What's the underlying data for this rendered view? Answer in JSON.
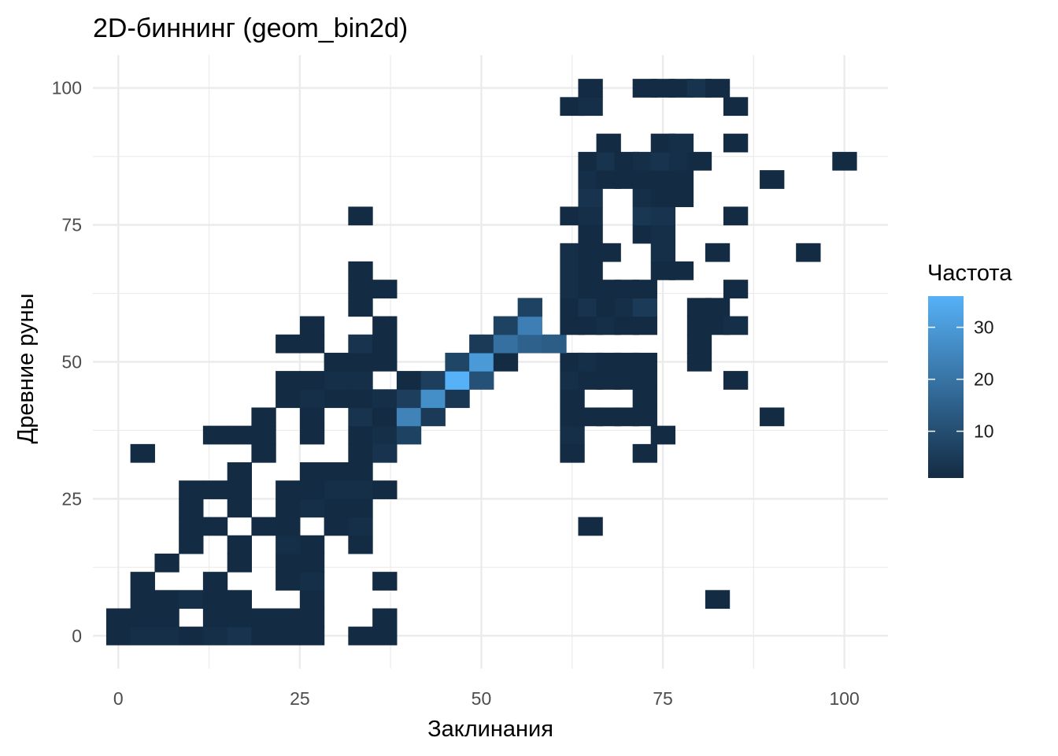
{
  "chart_data": {
    "type": "heatmap",
    "title": "2D-биннинг (geom_bin2d)",
    "xlabel": "Заклинания",
    "ylabel": "Древние руны",
    "xlim": [
      -3.5,
      106
    ],
    "ylim": [
      -6,
      106
    ],
    "x_ticks": [
      0,
      25,
      50,
      75,
      100
    ],
    "y_ticks": [
      0,
      25,
      50,
      75,
      100
    ],
    "x_tick_labels": [
      "0",
      "25",
      "50",
      "75",
      "100"
    ],
    "y_tick_labels": [
      "0",
      "25",
      "50",
      "75",
      "100"
    ],
    "grid": true,
    "binwidth_x": 3.33,
    "binwidth_y": 3.33,
    "legend": {
      "title": "Частота",
      "position": "right",
      "range": [
        1,
        36
      ],
      "ticks": [
        10,
        20,
        30
      ],
      "tick_labels": [
        "10",
        "20",
        "30"
      ],
      "low_color": "#132B43",
      "high_color": "#56B1F7"
    },
    "cells": [
      [
        0,
        0,
        1
      ],
      [
        3.33,
        0,
        2
      ],
      [
        6.67,
        0,
        2
      ],
      [
        10,
        0,
        1
      ],
      [
        13.33,
        0,
        2
      ],
      [
        16.67,
        0,
        3
      ],
      [
        20,
        0,
        1
      ],
      [
        23.33,
        0,
        1
      ],
      [
        26.67,
        0,
        1
      ],
      [
        33.33,
        0,
        1
      ],
      [
        36.67,
        0,
        1
      ],
      [
        0,
        3.33,
        1
      ],
      [
        3.33,
        3.33,
        1
      ],
      [
        6.67,
        3.33,
        1
      ],
      [
        13.33,
        3.33,
        1
      ],
      [
        16.67,
        3.33,
        1
      ],
      [
        20,
        3.33,
        1
      ],
      [
        23.33,
        3.33,
        1
      ],
      [
        26.67,
        3.33,
        1
      ],
      [
        36.67,
        3.33,
        1
      ],
      [
        3.33,
        6.67,
        1
      ],
      [
        6.67,
        6.67,
        1
      ],
      [
        10,
        6.67,
        2
      ],
      [
        13.33,
        6.67,
        1
      ],
      [
        16.67,
        6.67,
        1
      ],
      [
        26.67,
        6.67,
        1
      ],
      [
        82.5,
        6.67,
        1
      ],
      [
        3.33,
        10,
        1
      ],
      [
        13.33,
        10,
        1
      ],
      [
        23.33,
        10,
        1
      ],
      [
        26.67,
        10,
        2
      ],
      [
        36.67,
        10,
        1
      ],
      [
        6.67,
        13.33,
        1
      ],
      [
        16.67,
        13.33,
        1
      ],
      [
        23.33,
        13.33,
        1
      ],
      [
        26.67,
        13.33,
        1
      ],
      [
        10,
        16.67,
        1
      ],
      [
        16.67,
        16.67,
        1
      ],
      [
        23.33,
        16.67,
        2
      ],
      [
        26.67,
        16.67,
        1
      ],
      [
        33.33,
        16.67,
        1
      ],
      [
        10,
        20,
        1
      ],
      [
        13.33,
        20,
        1
      ],
      [
        20,
        20,
        1
      ],
      [
        23.33,
        20,
        1
      ],
      [
        30,
        20,
        1
      ],
      [
        33.33,
        20,
        2
      ],
      [
        65,
        20,
        1
      ],
      [
        10,
        23.33,
        1
      ],
      [
        16.67,
        23.33,
        1
      ],
      [
        23.33,
        23.33,
        1
      ],
      [
        26.67,
        23.33,
        2
      ],
      [
        30,
        23.33,
        1
      ],
      [
        33.33,
        23.33,
        1
      ],
      [
        10,
        26.67,
        1
      ],
      [
        13.33,
        26.67,
        1
      ],
      [
        16.67,
        26.67,
        1
      ],
      [
        23.33,
        26.67,
        1
      ],
      [
        26.67,
        26.67,
        1
      ],
      [
        30,
        26.67,
        2
      ],
      [
        33.33,
        26.67,
        2
      ],
      [
        36.67,
        26.67,
        1
      ],
      [
        16.67,
        30,
        1
      ],
      [
        26.67,
        30,
        1
      ],
      [
        30,
        30,
        1
      ],
      [
        33.33,
        30,
        1
      ],
      [
        3.33,
        33.33,
        1
      ],
      [
        20,
        33.33,
        1
      ],
      [
        33.33,
        33.33,
        1
      ],
      [
        36.67,
        33.33,
        3
      ],
      [
        62.5,
        33.33,
        1
      ],
      [
        72.5,
        33.33,
        1
      ],
      [
        13.33,
        36.67,
        1
      ],
      [
        16.67,
        36.67,
        1
      ],
      [
        20,
        36.67,
        1
      ],
      [
        26.67,
        36.67,
        1
      ],
      [
        33.33,
        36.67,
        1
      ],
      [
        36.67,
        36.67,
        2
      ],
      [
        40,
        36.67,
        7
      ],
      [
        62.5,
        36.67,
        2
      ],
      [
        75,
        36.67,
        1
      ],
      [
        20,
        40,
        1
      ],
      [
        26.67,
        40,
        1
      ],
      [
        33.33,
        40,
        3
      ],
      [
        36.67,
        40,
        1
      ],
      [
        40,
        40,
        24
      ],
      [
        43.33,
        40,
        5
      ],
      [
        62.5,
        40,
        1
      ],
      [
        65,
        40,
        1
      ],
      [
        67.5,
        40,
        1
      ],
      [
        70,
        40,
        1
      ],
      [
        72.5,
        40,
        1
      ],
      [
        90,
        40,
        1
      ],
      [
        23.33,
        43.33,
        1
      ],
      [
        26.67,
        43.33,
        2
      ],
      [
        30,
        43.33,
        1
      ],
      [
        33.33,
        43.33,
        1
      ],
      [
        36.67,
        43.33,
        2
      ],
      [
        40,
        43.33,
        6
      ],
      [
        43.33,
        43.33,
        27
      ],
      [
        46.67,
        43.33,
        4
      ],
      [
        62.5,
        43.33,
        1
      ],
      [
        72.5,
        43.33,
        1
      ],
      [
        23.33,
        46.67,
        1
      ],
      [
        26.67,
        46.67,
        1
      ],
      [
        30,
        46.67,
        2
      ],
      [
        33.33,
        46.67,
        2
      ],
      [
        40,
        46.67,
        1
      ],
      [
        43.33,
        46.67,
        6
      ],
      [
        46.67,
        46.67,
        36
      ],
      [
        50,
        46.67,
        11
      ],
      [
        62.5,
        46.67,
        2
      ],
      [
        65,
        46.67,
        1
      ],
      [
        67.5,
        46.67,
        1
      ],
      [
        70,
        46.67,
        1
      ],
      [
        72.5,
        46.67,
        1
      ],
      [
        85,
        46.67,
        1
      ],
      [
        30,
        50,
        1
      ],
      [
        33.33,
        50,
        1
      ],
      [
        36.67,
        50,
        1
      ],
      [
        46.67,
        50,
        8
      ],
      [
        50,
        50,
        30
      ],
      [
        53.33,
        50,
        1
      ],
      [
        62.5,
        50,
        1
      ],
      [
        65,
        50,
        2
      ],
      [
        67.5,
        50,
        1
      ],
      [
        70,
        50,
        1
      ],
      [
        72.5,
        50,
        1
      ],
      [
        80,
        50,
        1
      ],
      [
        23.33,
        53.33,
        1
      ],
      [
        26.67,
        53.33,
        1
      ],
      [
        33.33,
        53.33,
        3
      ],
      [
        36.67,
        53.33,
        1
      ],
      [
        50,
        53.33,
        5
      ],
      [
        53.33,
        53.33,
        19
      ],
      [
        56.67,
        53.33,
        15
      ],
      [
        60,
        53.33,
        14
      ],
      [
        80,
        53.33,
        1
      ],
      [
        26.67,
        56.67,
        1
      ],
      [
        36.67,
        56.67,
        1
      ],
      [
        53.33,
        56.67,
        7
      ],
      [
        56.67,
        56.67,
        23
      ],
      [
        62.5,
        56.67,
        1
      ],
      [
        65,
        56.67,
        1
      ],
      [
        67.5,
        56.67,
        2
      ],
      [
        70,
        56.67,
        1
      ],
      [
        72.5,
        56.67,
        1
      ],
      [
        80,
        56.67,
        1
      ],
      [
        82.5,
        56.67,
        1
      ],
      [
        85,
        56.67,
        2
      ],
      [
        33.33,
        60,
        1
      ],
      [
        56.67,
        60,
        7
      ],
      [
        62.5,
        60,
        1
      ],
      [
        65,
        60,
        3
      ],
      [
        67.5,
        60,
        1
      ],
      [
        70,
        60,
        2
      ],
      [
        72.5,
        60,
        5
      ],
      [
        80,
        60,
        1
      ],
      [
        82.5,
        60,
        1
      ],
      [
        33.33,
        63.33,
        1
      ],
      [
        36.67,
        63.33,
        1
      ],
      [
        62.5,
        63.33,
        2
      ],
      [
        65,
        63.33,
        1
      ],
      [
        67.5,
        63.33,
        1
      ],
      [
        70,
        63.33,
        1
      ],
      [
        72.5,
        63.33,
        1
      ],
      [
        85,
        63.33,
        1
      ],
      [
        33.33,
        66.67,
        1
      ],
      [
        62.5,
        66.67,
        2
      ],
      [
        65,
        66.67,
        1
      ],
      [
        75,
        66.67,
        1
      ],
      [
        77.5,
        66.67,
        1
      ],
      [
        62.5,
        70,
        2
      ],
      [
        65,
        70,
        1
      ],
      [
        67.5,
        70,
        1
      ],
      [
        75,
        70,
        2
      ],
      [
        82.5,
        70,
        1
      ],
      [
        95,
        70,
        1
      ],
      [
        65,
        73.33,
        1
      ],
      [
        72.5,
        73.33,
        1
      ],
      [
        75,
        73.33,
        2
      ],
      [
        33.33,
        76.67,
        1
      ],
      [
        62.5,
        76.67,
        1
      ],
      [
        65,
        76.67,
        2
      ],
      [
        72.5,
        76.67,
        4
      ],
      [
        75,
        76.67,
        3
      ],
      [
        85,
        76.67,
        1
      ],
      [
        65,
        80,
        3
      ],
      [
        72.5,
        80,
        2
      ],
      [
        75,
        80,
        1
      ],
      [
        77.5,
        80,
        1
      ],
      [
        65,
        83.33,
        2
      ],
      [
        67.5,
        83.33,
        1
      ],
      [
        70,
        83.33,
        1
      ],
      [
        72.5,
        83.33,
        1
      ],
      [
        75,
        83.33,
        1
      ],
      [
        77.5,
        83.33,
        1
      ],
      [
        90,
        83.33,
        1
      ],
      [
        65,
        86.67,
        1
      ],
      [
        67.5,
        86.67,
        3
      ],
      [
        70,
        86.67,
        1
      ],
      [
        72.5,
        86.67,
        2
      ],
      [
        75,
        86.67,
        3
      ],
      [
        77.5,
        86.67,
        2
      ],
      [
        80,
        86.67,
        1
      ],
      [
        100,
        86.67,
        1
      ],
      [
        67.5,
        90,
        1
      ],
      [
        75,
        90,
        1
      ],
      [
        77.5,
        90,
        2
      ],
      [
        85,
        90,
        1
      ],
      [
        62.5,
        96.67,
        1
      ],
      [
        65,
        96.67,
        2
      ],
      [
        85,
        96.67,
        1
      ],
      [
        65,
        100,
        1
      ],
      [
        72.5,
        100,
        1
      ],
      [
        75,
        100,
        1
      ],
      [
        77.5,
        100,
        1
      ],
      [
        80,
        100,
        3
      ],
      [
        82.5,
        100,
        1
      ]
    ]
  }
}
